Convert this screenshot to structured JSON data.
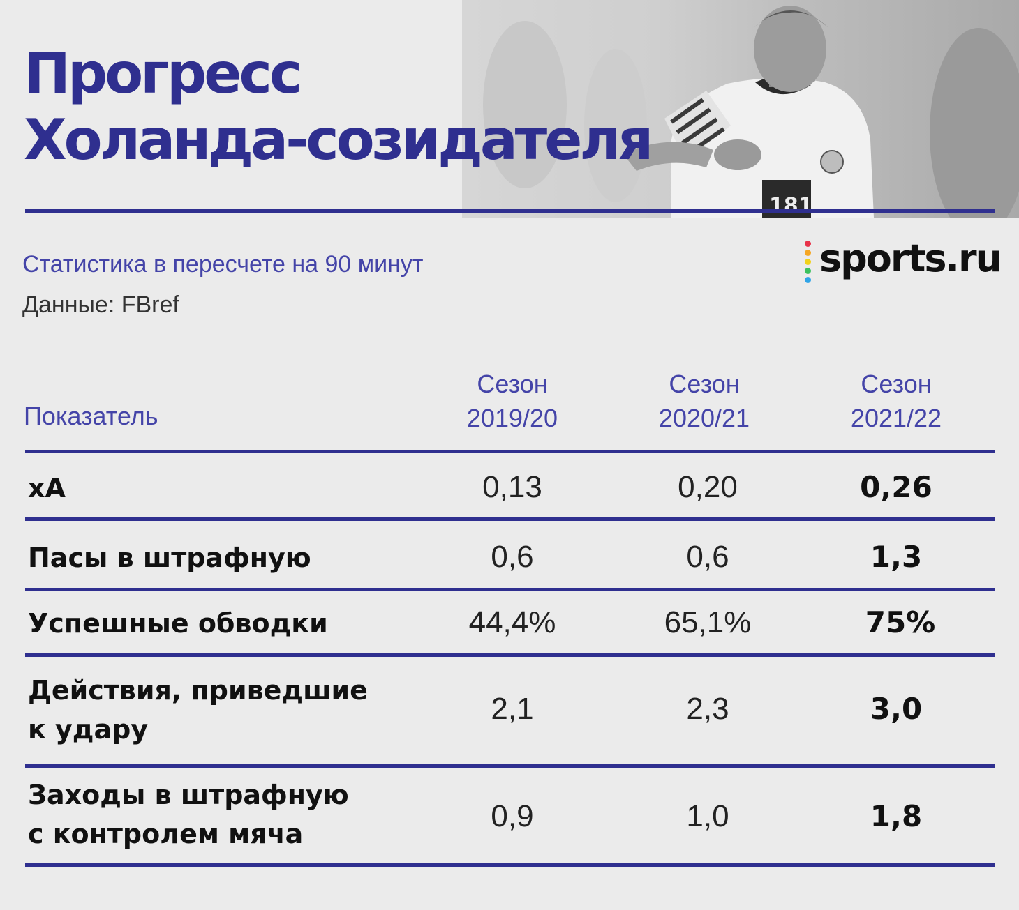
{
  "title": {
    "line1": "Прогресс",
    "line2": "Холанда-созидателя"
  },
  "subtitle": "Статистика в пересчете на 90 минут",
  "source": "Данные: FBref",
  "brand": {
    "name": "sports.ru",
    "dot_colors": [
      "#e8334a",
      "#f5a623",
      "#f1d11b",
      "#3cc15e",
      "#2fa4e7",
      "#8e5bd4"
    ]
  },
  "colors": {
    "accent": "#2f2f8f",
    "subtitle": "#4444a8"
  },
  "table": {
    "header": {
      "label": "Показатель",
      "columns": [
        {
          "line1": "Сезон",
          "line2": "2019/20"
        },
        {
          "line1": "Сезон",
          "line2": "2020/21"
        },
        {
          "line1": "Сезон",
          "line2": "2021/22"
        }
      ]
    },
    "rows": [
      {
        "label_lines": [
          "xA"
        ],
        "values": [
          "0,13",
          "0,20",
          "0,26"
        ]
      },
      {
        "label_lines": [
          "Пасы в штрафную"
        ],
        "values": [
          "0,6",
          "0,6",
          "1,3"
        ]
      },
      {
        "label_lines": [
          "Успешные обводки"
        ],
        "values": [
          "44,4%",
          "65,1%",
          "75%"
        ]
      },
      {
        "label_lines": [
          "Действия, приведшие",
          "к удару"
        ],
        "values": [
          "2,1",
          "2,3",
          "3,0"
        ]
      },
      {
        "label_lines": [
          "Заходы в штрафную",
          "с контролем мяча"
        ],
        "values": [
          "0,9",
          "1,0",
          "1,8"
        ]
      }
    ]
  }
}
